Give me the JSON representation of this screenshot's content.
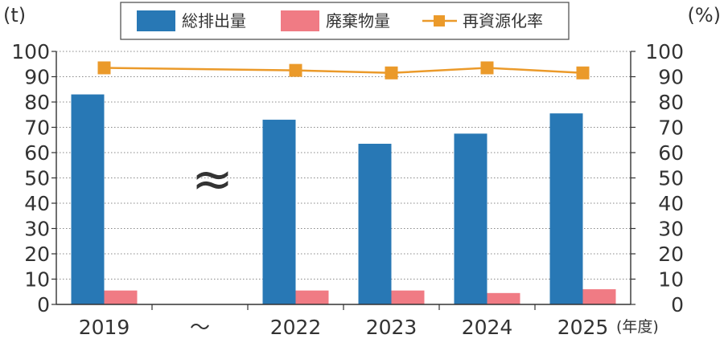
{
  "chart_data": {
    "type": "bar",
    "categories": [
      "2019",
      "〜",
      "2022",
      "2023",
      "2024",
      "2025"
    ],
    "break_marker": "≈",
    "left_axis_unit": "(t)",
    "right_axis_unit": "(%)",
    "x_axis_unit": "(年度)",
    "ylim": [
      0,
      100
    ],
    "yticks": [
      0,
      10,
      20,
      30,
      40,
      50,
      60,
      70,
      80,
      90,
      100
    ],
    "series": [
      {
        "name": "総排出量",
        "type": "bar",
        "axis": "left",
        "color": "#2878b5",
        "values": [
          83,
          null,
          73,
          63.5,
          67.5,
          75.5
        ]
      },
      {
        "name": "廃棄物量",
        "type": "bar",
        "axis": "left",
        "color": "#f07b84",
        "values": [
          5.5,
          null,
          5.5,
          5.5,
          4.5,
          6
        ]
      },
      {
        "name": "再資源化率",
        "type": "line",
        "axis": "right",
        "color": "#eb9a2a",
        "values": [
          93.5,
          null,
          92.5,
          91.5,
          93.5,
          91.5
        ]
      }
    ],
    "legend_position": "top",
    "grid": "horizontal-dotted"
  }
}
